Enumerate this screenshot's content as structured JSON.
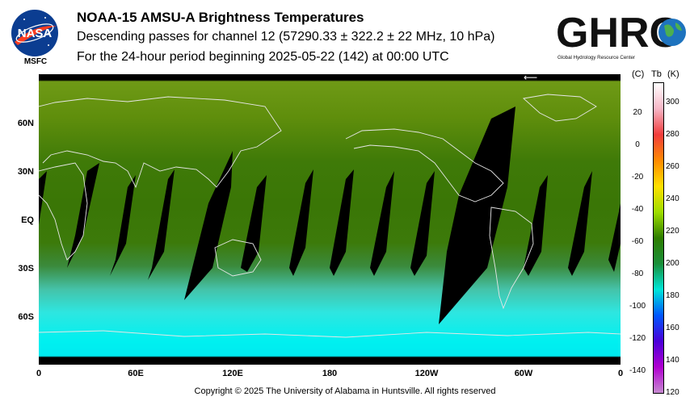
{
  "header": {
    "title": "NOAA-15 AMSU-A Brightness Temperatures",
    "subtitle": "Descending passes for channel 12 (57290.33 ± 322.2 ± 22 MHz, 10 hPa)",
    "period": "For the 24-hour period beginning 2025-05-22 (142) at 00:00 UTC"
  },
  "logos": {
    "nasa_text": "NASA",
    "msfc_label": "MSFC",
    "ghrc_text": "GHRC",
    "ghrc_caption": "Global Hydrology Resource Center"
  },
  "map": {
    "lat_labels": [
      "60N",
      "30N",
      "EQ",
      "30S",
      "60S"
    ],
    "lon_labels": [
      "0",
      "60E",
      "120E",
      "180",
      "120W",
      "60W",
      "0"
    ],
    "arrow_glyph": "⟵"
  },
  "colorbar": {
    "c_header": "(C)",
    "tb_header": "Tb",
    "k_header": "(K)",
    "celsius_labels": [
      "20",
      "0",
      "-20",
      "-40",
      "-60",
      "-80",
      "-100",
      "-120",
      "-140"
    ],
    "kelvin_labels": [
      "300",
      "280",
      "260",
      "240",
      "220",
      "200",
      "180",
      "160",
      "140",
      "120"
    ],
    "colors": [
      "#ffffff",
      "#f7b6c6",
      "#f23c3c",
      "#ff8a00",
      "#ffe000",
      "#9edd00",
      "#2e7d00",
      "#1a8f3a",
      "#00e6d8",
      "#0057ff",
      "#4a00d8",
      "#b000d0",
      "#c68ad0"
    ]
  },
  "footer": {
    "copyright": "Copyright © 2025 The University of Alabama in Huntsville.  All rights reserved"
  }
}
